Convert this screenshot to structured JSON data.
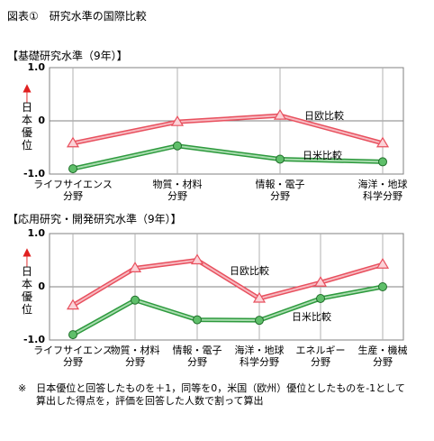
{
  "figure_title": "図表①　研究水準の国際比較",
  "chart_data": [
    {
      "type": "line",
      "title": "【基礎研究水準（9年）】",
      "ylabel": "日本優位",
      "ylim": [
        -1.0,
        1.0
      ],
      "yticks": [
        "1.0",
        "0",
        "-1.0"
      ],
      "categories": [
        [
          "ライフサイエンス",
          "分野"
        ],
        [
          "物質・材料",
          "分野"
        ],
        [
          "情報・電子",
          "分野"
        ],
        [
          "海洋・地球",
          "科学分野"
        ]
      ],
      "series": [
        {
          "name": "日欧比較",
          "color": "#e8505e",
          "marker": "triangle",
          "values": [
            -0.42,
            -0.02,
            0.1,
            -0.42
          ]
        },
        {
          "name": "日米比較",
          "color": "#2e9a3e",
          "marker": "circle",
          "values": [
            -0.9,
            -0.47,
            -0.72,
            -0.77
          ]
        }
      ],
      "grid": true
    },
    {
      "type": "line",
      "title": "【応用研究・開発研究水準（9年）】",
      "ylabel": "日本優位",
      "ylim": [
        -1.0,
        1.0
      ],
      "yticks": [
        "1.0",
        "0",
        "-1.0"
      ],
      "categories": [
        [
          "ライフサイエンス",
          "分野"
        ],
        [
          "物質・材料",
          "分野"
        ],
        [
          "情報・電子",
          "分野"
        ],
        [
          "海洋・地球",
          "科学分野"
        ],
        [
          "エネルギー",
          "分野"
        ],
        [
          "生産・機械",
          "分野"
        ]
      ],
      "series": [
        {
          "name": "日欧比較",
          "color": "#e8505e",
          "marker": "triangle",
          "values": [
            -0.35,
            0.35,
            0.5,
            -0.22,
            0.08,
            0.42
          ]
        },
        {
          "name": "日米比較",
          "color": "#2e9a3e",
          "marker": "circle",
          "values": [
            -0.9,
            -0.25,
            -0.62,
            -0.63,
            -0.22,
            0.0
          ]
        }
      ],
      "grid": true
    }
  ],
  "note_line1": "※　日本優位と回答したものを＋1，同等を0，米国（欧州）優位としたものを-1として",
  "note_line2": "算出した得点を，評価を回答した人数で割って算出"
}
